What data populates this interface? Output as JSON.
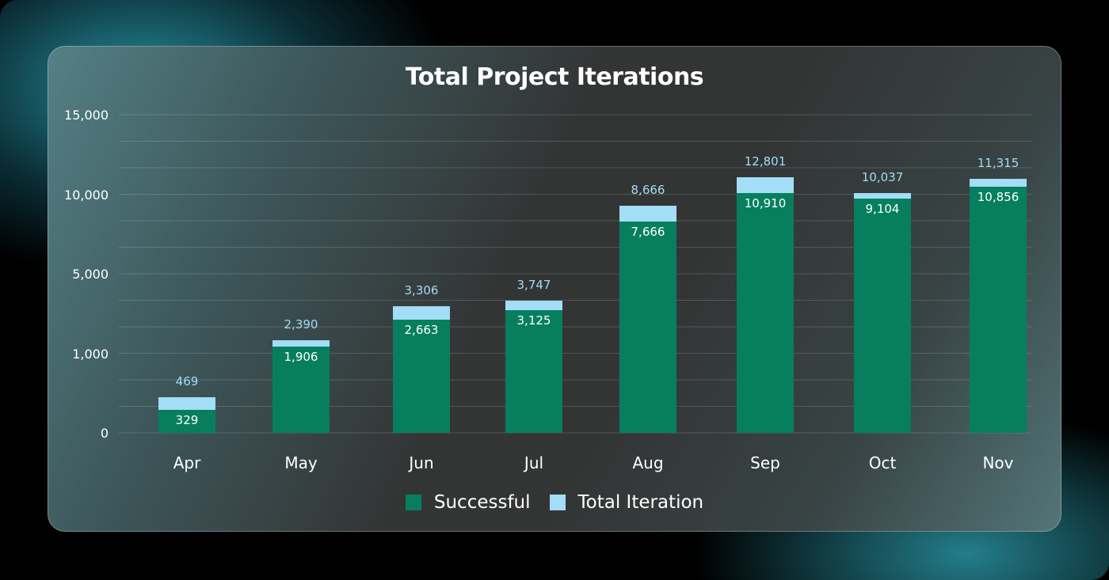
{
  "chart_data": {
    "type": "bar",
    "title": "Total Project Iterations",
    "categories": [
      "Apr",
      "May",
      "Jun",
      "Jul",
      "Aug",
      "Sep",
      "Oct",
      "Nov"
    ],
    "series": [
      {
        "name": "Successful",
        "values": [
          329,
          1906,
          2663,
          3125,
          7666,
          10910,
          9104,
          10856
        ],
        "color": "#077f5e"
      },
      {
        "name": "Total Iteration",
        "values": [
          469,
          2390,
          3306,
          3747,
          8666,
          12801,
          10037,
          11315
        ],
        "color": "#a3ddf6"
      }
    ],
    "yticks": [
      "0",
      "1,000",
      "5,000",
      "10,000",
      "15,000"
    ],
    "ylim": [
      0,
      15000
    ],
    "xlabel": "",
    "ylabel": "",
    "legend_position": "bottom",
    "grid": true
  }
}
